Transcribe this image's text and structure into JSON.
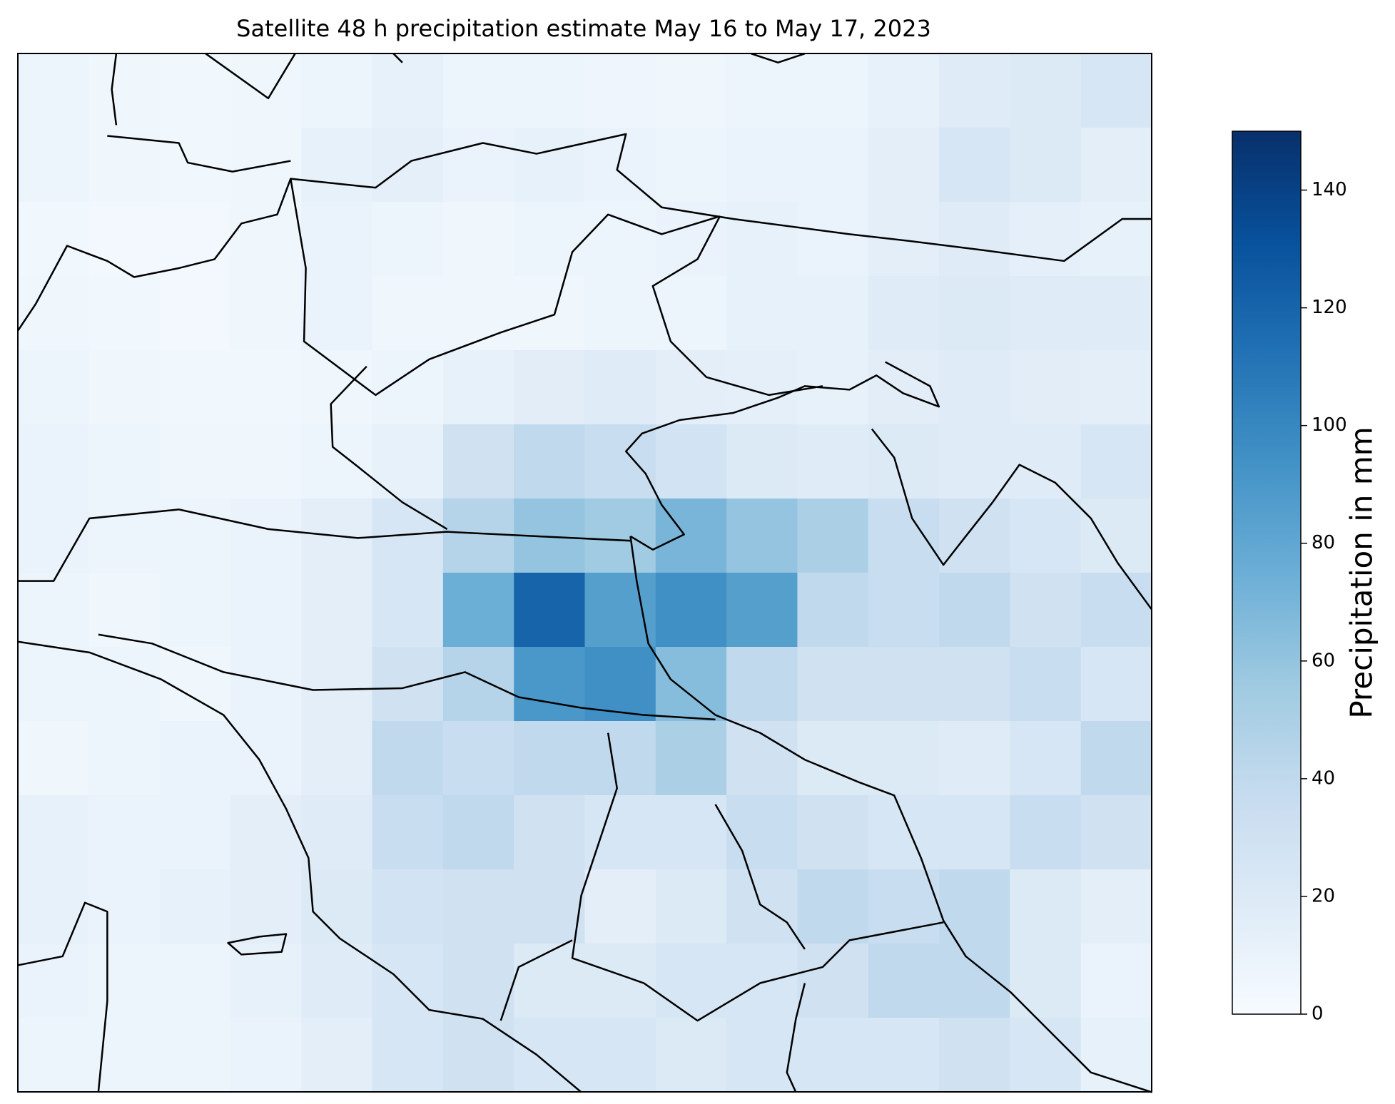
{
  "chart_data": {
    "type": "heatmap",
    "title": "Satellite 48 h precipitation estimate May 16 to May 17, 2023",
    "colorbar_label": "Precipitation in mm",
    "colormap": [
      "#f7fbff",
      "#deebf7",
      "#c6dbef",
      "#9ecae1",
      "#6baed6",
      "#4292c6",
      "#2171b5",
      "#08519c",
      "#08306b"
    ],
    "clim": [
      0,
      150
    ],
    "cticks": [
      0,
      20,
      40,
      60,
      80,
      100,
      120,
      140
    ],
    "values": [
      [
        8,
        6,
        5,
        6,
        8,
        12,
        8,
        8,
        7,
        6,
        8,
        8,
        12,
        18,
        20,
        25
      ],
      [
        8,
        6,
        5,
        6,
        12,
        14,
        10,
        12,
        10,
        8,
        10,
        10,
        15,
        25,
        20,
        15
      ],
      [
        5,
        4,
        4,
        6,
        10,
        8,
        6,
        8,
        8,
        10,
        12,
        10,
        15,
        18,
        14,
        12
      ],
      [
        6,
        5,
        4,
        6,
        10,
        6,
        6,
        6,
        8,
        8,
        12,
        12,
        18,
        20,
        18,
        18
      ],
      [
        8,
        6,
        5,
        5,
        6,
        8,
        12,
        16,
        18,
        15,
        14,
        12,
        16,
        18,
        16,
        15
      ],
      [
        10,
        8,
        6,
        6,
        8,
        12,
        30,
        40,
        35,
        28,
        20,
        18,
        20,
        18,
        18,
        25
      ],
      [
        10,
        8,
        8,
        10,
        15,
        25,
        45,
        60,
        55,
        70,
        60,
        50,
        35,
        30,
        25,
        20
      ],
      [
        8,
        6,
        8,
        10,
        15,
        25,
        75,
        120,
        85,
        95,
        85,
        40,
        35,
        40,
        30,
        35
      ],
      [
        8,
        8,
        6,
        10,
        15,
        30,
        45,
        90,
        95,
        65,
        40,
        30,
        30,
        30,
        35,
        25
      ],
      [
        6,
        8,
        10,
        10,
        15,
        40,
        35,
        40,
        40,
        50,
        30,
        20,
        20,
        18,
        25,
        40
      ],
      [
        12,
        10,
        10,
        15,
        18,
        35,
        40,
        30,
        25,
        25,
        35,
        30,
        25,
        25,
        35,
        30
      ],
      [
        12,
        10,
        12,
        15,
        20,
        28,
        30,
        30,
        15,
        20,
        30,
        40,
        35,
        40,
        20,
        15
      ],
      [
        10,
        8,
        8,
        12,
        18,
        25,
        30,
        20,
        20,
        25,
        25,
        30,
        40,
        40,
        20,
        10
      ],
      [
        8,
        8,
        8,
        10,
        15,
        25,
        30,
        25,
        25,
        20,
        25,
        25,
        25,
        30,
        25,
        12
      ]
    ]
  }
}
